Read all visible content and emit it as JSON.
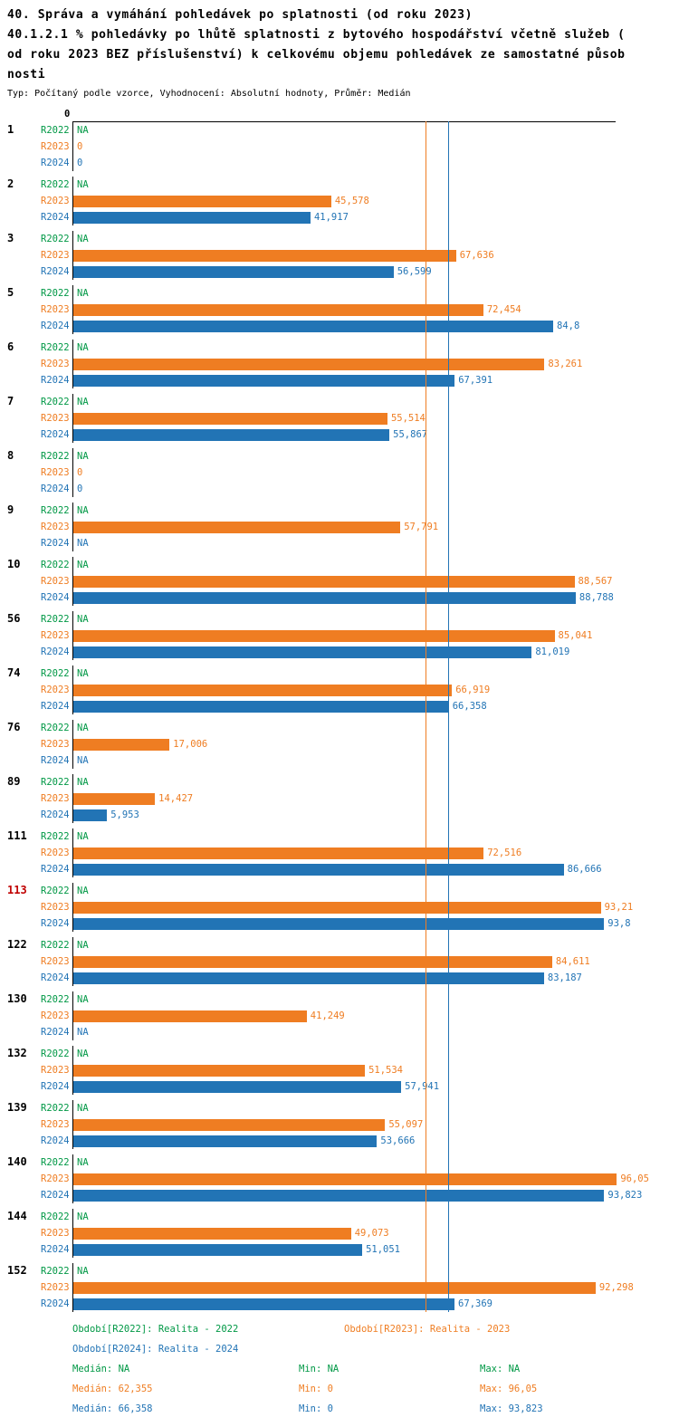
{
  "title": {
    "line1": "40. Správa a vymáhání pohledávek po splatnosti (od roku 2023)",
    "line2a": "40.1.2.1 % pohledávky po lhůtě splatnosti z bytového hospodářství včetně služeb (",
    "line2b": "od roku 2023 BEZ příslušenství) k celkovému objemu pohledávek ze samostatné působ",
    "line2c": "nosti",
    "subtitle": "Typ: Počítaný podle vzorce, Vyhodnocení: Absolutní hodnoty, Průměr: Medián"
  },
  "axis": {
    "zero_label": "0"
  },
  "colors": {
    "r2022": "#009845",
    "r2023": "#ef7d22",
    "r2024": "#2274b5",
    "highlight": "#c00000",
    "axis": "#000000"
  },
  "chart_data": {
    "type": "bar",
    "orientation": "horizontal",
    "unit": "%",
    "xlim": [
      0,
      96.05
    ],
    "series_labels": [
      "R2022",
      "R2023",
      "R2024"
    ],
    "reference_lines": [
      {
        "name": "median-r2023",
        "value": 62.355,
        "color": "#ef7d22"
      },
      {
        "name": "median-r2024",
        "value": 66.358,
        "color": "#2274b5"
      }
    ],
    "groups": [
      {
        "id": "1",
        "highlight": false,
        "rows": [
          {
            "series": "R2022",
            "label": "NA",
            "value": null
          },
          {
            "series": "R2023",
            "label": "0",
            "value": 0
          },
          {
            "series": "R2024",
            "label": "0",
            "value": 0
          }
        ]
      },
      {
        "id": "2",
        "highlight": false,
        "rows": [
          {
            "series": "R2022",
            "label": "NA",
            "value": null
          },
          {
            "series": "R2023",
            "label": "45,578",
            "value": 45.578
          },
          {
            "series": "R2024",
            "label": "41,917",
            "value": 41.917
          }
        ]
      },
      {
        "id": "3",
        "highlight": false,
        "rows": [
          {
            "series": "R2022",
            "label": "NA",
            "value": null
          },
          {
            "series": "R2023",
            "label": "67,636",
            "value": 67.636
          },
          {
            "series": "R2024",
            "label": "56,599",
            "value": 56.599
          }
        ]
      },
      {
        "id": "5",
        "highlight": false,
        "rows": [
          {
            "series": "R2022",
            "label": "NA",
            "value": null
          },
          {
            "series": "R2023",
            "label": "72,454",
            "value": 72.454
          },
          {
            "series": "R2024",
            "label": "84,8",
            "value": 84.8
          }
        ]
      },
      {
        "id": "6",
        "highlight": false,
        "rows": [
          {
            "series": "R2022",
            "label": "NA",
            "value": null
          },
          {
            "series": "R2023",
            "label": "83,261",
            "value": 83.261
          },
          {
            "series": "R2024",
            "label": "67,391",
            "value": 67.391
          }
        ]
      },
      {
        "id": "7",
        "highlight": false,
        "rows": [
          {
            "series": "R2022",
            "label": "NA",
            "value": null
          },
          {
            "series": "R2023",
            "label": "55,514",
            "value": 55.514
          },
          {
            "series": "R2024",
            "label": "55,867",
            "value": 55.867
          }
        ]
      },
      {
        "id": "8",
        "highlight": false,
        "rows": [
          {
            "series": "R2022",
            "label": "NA",
            "value": null
          },
          {
            "series": "R2023",
            "label": "0",
            "value": 0
          },
          {
            "series": "R2024",
            "label": "0",
            "value": 0
          }
        ]
      },
      {
        "id": "9",
        "highlight": false,
        "rows": [
          {
            "series": "R2022",
            "label": "NA",
            "value": null
          },
          {
            "series": "R2023",
            "label": "57,791",
            "value": 57.791
          },
          {
            "series": "R2024",
            "label": "NA",
            "value": null
          }
        ]
      },
      {
        "id": "10",
        "highlight": false,
        "rows": [
          {
            "series": "R2022",
            "label": "NA",
            "value": null
          },
          {
            "series": "R2023",
            "label": "88,567",
            "value": 88.567
          },
          {
            "series": "R2024",
            "label": "88,788",
            "value": 88.788
          }
        ]
      },
      {
        "id": "56",
        "highlight": false,
        "rows": [
          {
            "series": "R2022",
            "label": "NA",
            "value": null
          },
          {
            "series": "R2023",
            "label": "85,041",
            "value": 85.041
          },
          {
            "series": "R2024",
            "label": "81,019",
            "value": 81.019
          }
        ]
      },
      {
        "id": "74",
        "highlight": false,
        "rows": [
          {
            "series": "R2022",
            "label": "NA",
            "value": null
          },
          {
            "series": "R2023",
            "label": "66,919",
            "value": 66.919
          },
          {
            "series": "R2024",
            "label": "66,358",
            "value": 66.358
          }
        ]
      },
      {
        "id": "76",
        "highlight": false,
        "rows": [
          {
            "series": "R2022",
            "label": "NA",
            "value": null
          },
          {
            "series": "R2023",
            "label": "17,006",
            "value": 17.006
          },
          {
            "series": "R2024",
            "label": "NA",
            "value": null
          }
        ]
      },
      {
        "id": "89",
        "highlight": false,
        "rows": [
          {
            "series": "R2022",
            "label": "NA",
            "value": null
          },
          {
            "series": "R2023",
            "label": "14,427",
            "value": 14.427
          },
          {
            "series": "R2024",
            "label": "5,953",
            "value": 5.953
          }
        ]
      },
      {
        "id": "111",
        "highlight": false,
        "rows": [
          {
            "series": "R2022",
            "label": "NA",
            "value": null
          },
          {
            "series": "R2023",
            "label": "72,516",
            "value": 72.516
          },
          {
            "series": "R2024",
            "label": "86,666",
            "value": 86.666
          }
        ]
      },
      {
        "id": "113",
        "highlight": true,
        "rows": [
          {
            "series": "R2022",
            "label": "NA",
            "value": null
          },
          {
            "series": "R2023",
            "label": "93,21",
            "value": 93.21
          },
          {
            "series": "R2024",
            "label": "93,8",
            "value": 93.8
          }
        ]
      },
      {
        "id": "122",
        "highlight": false,
        "rows": [
          {
            "series": "R2022",
            "label": "NA",
            "value": null
          },
          {
            "series": "R2023",
            "label": "84,611",
            "value": 84.611
          },
          {
            "series": "R2024",
            "label": "83,187",
            "value": 83.187
          }
        ]
      },
      {
        "id": "130",
        "highlight": false,
        "rows": [
          {
            "series": "R2022",
            "label": "NA",
            "value": null
          },
          {
            "series": "R2023",
            "label": "41,249",
            "value": 41.249
          },
          {
            "series": "R2024",
            "label": "NA",
            "value": null
          }
        ]
      },
      {
        "id": "132",
        "highlight": false,
        "rows": [
          {
            "series": "R2022",
            "label": "NA",
            "value": null
          },
          {
            "series": "R2023",
            "label": "51,534",
            "value": 51.534
          },
          {
            "series": "R2024",
            "label": "57,941",
            "value": 57.941
          }
        ]
      },
      {
        "id": "139",
        "highlight": false,
        "rows": [
          {
            "series": "R2022",
            "label": "NA",
            "value": null
          },
          {
            "series": "R2023",
            "label": "55,097",
            "value": 55.097
          },
          {
            "series": "R2024",
            "label": "53,666",
            "value": 53.666
          }
        ]
      },
      {
        "id": "140",
        "highlight": false,
        "rows": [
          {
            "series": "R2022",
            "label": "NA",
            "value": null
          },
          {
            "series": "R2023",
            "label": "96,05",
            "value": 96.05
          },
          {
            "series": "R2024",
            "label": "93,823",
            "value": 93.823
          }
        ]
      },
      {
        "id": "144",
        "highlight": false,
        "rows": [
          {
            "series": "R2022",
            "label": "NA",
            "value": null
          },
          {
            "series": "R2023",
            "label": "49,073",
            "value": 49.073
          },
          {
            "series": "R2024",
            "label": "51,051",
            "value": 51.051
          }
        ]
      },
      {
        "id": "152",
        "highlight": false,
        "rows": [
          {
            "series": "R2022",
            "label": "NA",
            "value": null
          },
          {
            "series": "R2023",
            "label": "92,298",
            "value": 92.298
          },
          {
            "series": "R2024",
            "label": "67,369",
            "value": 67.369
          }
        ]
      }
    ]
  },
  "legend": {
    "r2022": {
      "label": "Období[R2022]: Realita - 2022"
    },
    "r2023": {
      "label": "Období[R2023]: Realita - 2023"
    },
    "r2024": {
      "label": "Období[R2024]: Realita - 2024"
    }
  },
  "stats": {
    "r2022": {
      "median": "Medián: NA",
      "min": "Min: NA",
      "max": "Max: NA"
    },
    "r2023": {
      "median": "Medián: 62,355",
      "min": "Min: 0",
      "max": "Max: 96,05"
    },
    "r2024": {
      "median": "Medián: 66,358",
      "min": "Min: 0",
      "max": "Max: 93,823"
    }
  }
}
